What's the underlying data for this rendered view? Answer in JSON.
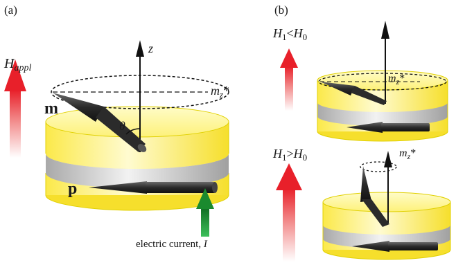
{
  "panel_a": {
    "label": "(a)",
    "field_label": "H",
    "field_sub": "appl",
    "z_label": "z",
    "mz_label": "m",
    "mz_sub": "z",
    "mz_star": "*",
    "m_label": "m",
    "theta_label": "θ",
    "p_label": "p",
    "current_label": "electric current, ",
    "current_symbol": "I"
  },
  "panel_b": {
    "label": "(b)",
    "top_condition": {
      "h": "H",
      "h_sub": "1",
      "rel": "<",
      "h0": "H",
      "h0_sub": "0"
    },
    "bottom_condition": {
      "h": "H",
      "h_sub": "1",
      "rel": ">",
      "h0": "H",
      "h0_sub": "0"
    },
    "mz_label": "m",
    "mz_sub": "z",
    "mz_star": "*"
  },
  "colors": {
    "yellow_layer": "#fdf59a",
    "yellow_edge": "#e0d000",
    "spacer_gray": "#c9c9c9",
    "arrow_dark": "#2b2b2b",
    "field_red": "#e8202a",
    "current_green": "#1a8a2e"
  }
}
